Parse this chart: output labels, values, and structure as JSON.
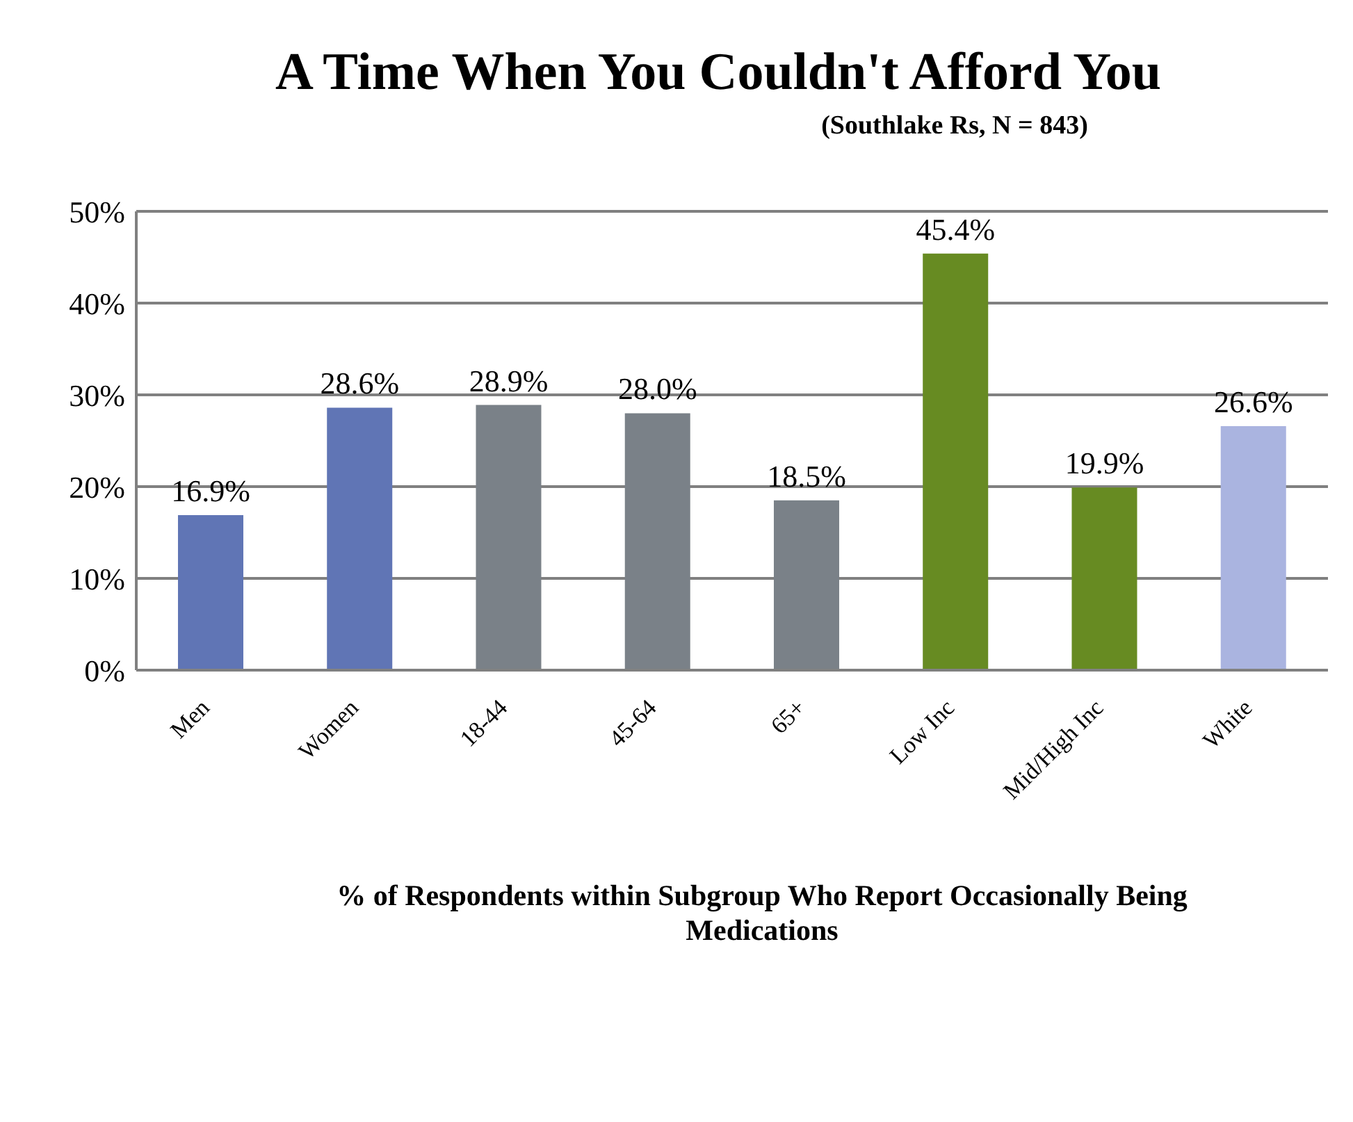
{
  "chart_data": {
    "type": "bar",
    "title": "A Time When You Couldn't Afford You",
    "subtitle": "(Southlake Rs, N = 843)",
    "xlabel": "% of Respondents within Subgroup Who Report Occasionally Being Medications",
    "categories": [
      "Men",
      "Women",
      "18-44",
      "45-64",
      "65+",
      "Low Inc",
      "Mid/High Inc",
      "White"
    ],
    "values": [
      16.9,
      28.6,
      28.9,
      28.0,
      18.5,
      45.4,
      19.9,
      26.6
    ],
    "colors": [
      "#6075b5",
      "#6075b5",
      "#7a8188",
      "#7a8188",
      "#7a8188",
      "#678b22",
      "#678b22",
      "#aab4e0"
    ],
    "value_labels": [
      "16.9%",
      "28.6%",
      "28.9%",
      "28.0%",
      "18.5%",
      "45.4%",
      "19.9%",
      "26.6%"
    ],
    "ylim": [
      0,
      50
    ],
    "yticks": [
      {
        "value": 0,
        "label": "0%"
      },
      {
        "value": 10,
        "label": "10%"
      },
      {
        "value": 20,
        "label": "20%"
      },
      {
        "value": 30,
        "label": "30%"
      },
      {
        "value": 40,
        "label": "40%"
      },
      {
        "value": 50,
        "label": "50%"
      }
    ],
    "grid": "y"
  }
}
